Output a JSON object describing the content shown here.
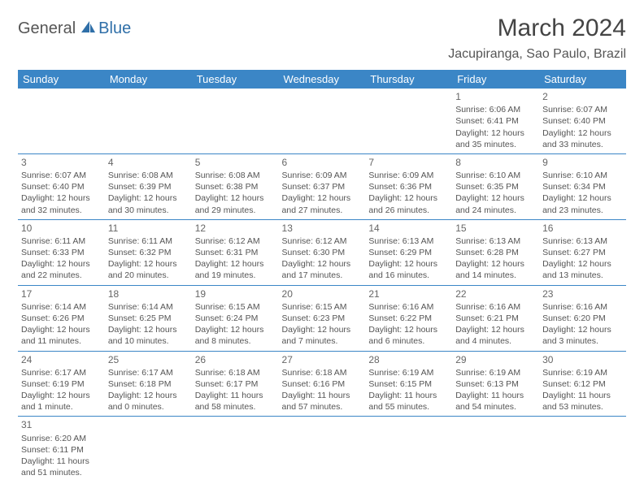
{
  "logo": {
    "text1": "General",
    "text2": "Blue"
  },
  "title": "March 2024",
  "location": "Jacupiranga, Sao Paulo, Brazil",
  "colors": {
    "header_bg": "#3b86c6",
    "header_text": "#ffffff",
    "border": "#3b86c6",
    "body_text": "#555555",
    "logo_accent": "#2f6fa8"
  },
  "weekdays": [
    "Sunday",
    "Monday",
    "Tuesday",
    "Wednesday",
    "Thursday",
    "Friday",
    "Saturday"
  ],
  "weeks": [
    [
      null,
      null,
      null,
      null,
      null,
      {
        "n": "1",
        "sr": "Sunrise: 6:06 AM",
        "ss": "Sunset: 6:41 PM",
        "dl": "Daylight: 12 hours and 35 minutes."
      },
      {
        "n": "2",
        "sr": "Sunrise: 6:07 AM",
        "ss": "Sunset: 6:40 PM",
        "dl": "Daylight: 12 hours and 33 minutes."
      }
    ],
    [
      {
        "n": "3",
        "sr": "Sunrise: 6:07 AM",
        "ss": "Sunset: 6:40 PM",
        "dl": "Daylight: 12 hours and 32 minutes."
      },
      {
        "n": "4",
        "sr": "Sunrise: 6:08 AM",
        "ss": "Sunset: 6:39 PM",
        "dl": "Daylight: 12 hours and 30 minutes."
      },
      {
        "n": "5",
        "sr": "Sunrise: 6:08 AM",
        "ss": "Sunset: 6:38 PM",
        "dl": "Daylight: 12 hours and 29 minutes."
      },
      {
        "n": "6",
        "sr": "Sunrise: 6:09 AM",
        "ss": "Sunset: 6:37 PM",
        "dl": "Daylight: 12 hours and 27 minutes."
      },
      {
        "n": "7",
        "sr": "Sunrise: 6:09 AM",
        "ss": "Sunset: 6:36 PM",
        "dl": "Daylight: 12 hours and 26 minutes."
      },
      {
        "n": "8",
        "sr": "Sunrise: 6:10 AM",
        "ss": "Sunset: 6:35 PM",
        "dl": "Daylight: 12 hours and 24 minutes."
      },
      {
        "n": "9",
        "sr": "Sunrise: 6:10 AM",
        "ss": "Sunset: 6:34 PM",
        "dl": "Daylight: 12 hours and 23 minutes."
      }
    ],
    [
      {
        "n": "10",
        "sr": "Sunrise: 6:11 AM",
        "ss": "Sunset: 6:33 PM",
        "dl": "Daylight: 12 hours and 22 minutes."
      },
      {
        "n": "11",
        "sr": "Sunrise: 6:11 AM",
        "ss": "Sunset: 6:32 PM",
        "dl": "Daylight: 12 hours and 20 minutes."
      },
      {
        "n": "12",
        "sr": "Sunrise: 6:12 AM",
        "ss": "Sunset: 6:31 PM",
        "dl": "Daylight: 12 hours and 19 minutes."
      },
      {
        "n": "13",
        "sr": "Sunrise: 6:12 AM",
        "ss": "Sunset: 6:30 PM",
        "dl": "Daylight: 12 hours and 17 minutes."
      },
      {
        "n": "14",
        "sr": "Sunrise: 6:13 AM",
        "ss": "Sunset: 6:29 PM",
        "dl": "Daylight: 12 hours and 16 minutes."
      },
      {
        "n": "15",
        "sr": "Sunrise: 6:13 AM",
        "ss": "Sunset: 6:28 PM",
        "dl": "Daylight: 12 hours and 14 minutes."
      },
      {
        "n": "16",
        "sr": "Sunrise: 6:13 AM",
        "ss": "Sunset: 6:27 PM",
        "dl": "Daylight: 12 hours and 13 minutes."
      }
    ],
    [
      {
        "n": "17",
        "sr": "Sunrise: 6:14 AM",
        "ss": "Sunset: 6:26 PM",
        "dl": "Daylight: 12 hours and 11 minutes."
      },
      {
        "n": "18",
        "sr": "Sunrise: 6:14 AM",
        "ss": "Sunset: 6:25 PM",
        "dl": "Daylight: 12 hours and 10 minutes."
      },
      {
        "n": "19",
        "sr": "Sunrise: 6:15 AM",
        "ss": "Sunset: 6:24 PM",
        "dl": "Daylight: 12 hours and 8 minutes."
      },
      {
        "n": "20",
        "sr": "Sunrise: 6:15 AM",
        "ss": "Sunset: 6:23 PM",
        "dl": "Daylight: 12 hours and 7 minutes."
      },
      {
        "n": "21",
        "sr": "Sunrise: 6:16 AM",
        "ss": "Sunset: 6:22 PM",
        "dl": "Daylight: 12 hours and 6 minutes."
      },
      {
        "n": "22",
        "sr": "Sunrise: 6:16 AM",
        "ss": "Sunset: 6:21 PM",
        "dl": "Daylight: 12 hours and 4 minutes."
      },
      {
        "n": "23",
        "sr": "Sunrise: 6:16 AM",
        "ss": "Sunset: 6:20 PM",
        "dl": "Daylight: 12 hours and 3 minutes."
      }
    ],
    [
      {
        "n": "24",
        "sr": "Sunrise: 6:17 AM",
        "ss": "Sunset: 6:19 PM",
        "dl": "Daylight: 12 hours and 1 minute."
      },
      {
        "n": "25",
        "sr": "Sunrise: 6:17 AM",
        "ss": "Sunset: 6:18 PM",
        "dl": "Daylight: 12 hours and 0 minutes."
      },
      {
        "n": "26",
        "sr": "Sunrise: 6:18 AM",
        "ss": "Sunset: 6:17 PM",
        "dl": "Daylight: 11 hours and 58 minutes."
      },
      {
        "n": "27",
        "sr": "Sunrise: 6:18 AM",
        "ss": "Sunset: 6:16 PM",
        "dl": "Daylight: 11 hours and 57 minutes."
      },
      {
        "n": "28",
        "sr": "Sunrise: 6:19 AM",
        "ss": "Sunset: 6:15 PM",
        "dl": "Daylight: 11 hours and 55 minutes."
      },
      {
        "n": "29",
        "sr": "Sunrise: 6:19 AM",
        "ss": "Sunset: 6:13 PM",
        "dl": "Daylight: 11 hours and 54 minutes."
      },
      {
        "n": "30",
        "sr": "Sunrise: 6:19 AM",
        "ss": "Sunset: 6:12 PM",
        "dl": "Daylight: 11 hours and 53 minutes."
      }
    ],
    [
      {
        "n": "31",
        "sr": "Sunrise: 6:20 AM",
        "ss": "Sunset: 6:11 PM",
        "dl": "Daylight: 11 hours and 51 minutes."
      },
      null,
      null,
      null,
      null,
      null,
      null
    ]
  ]
}
